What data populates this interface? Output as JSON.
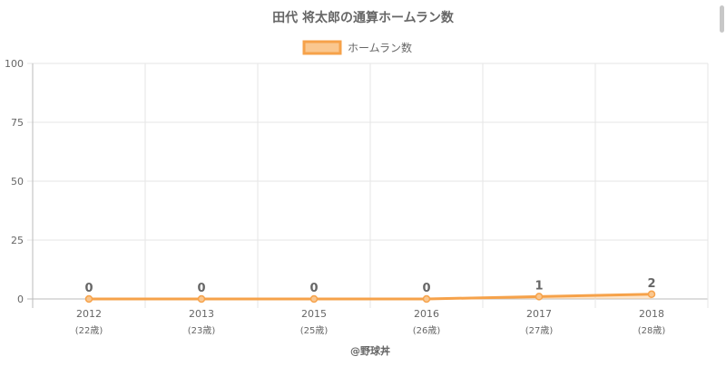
{
  "chart_data": {
    "type": "line",
    "title": "田代 将太郎の通算ホームラン数",
    "legend": {
      "position": "top",
      "label": "ホームラン数"
    },
    "categories": [
      "2012",
      "2013",
      "2015",
      "2016",
      "2017",
      "2018"
    ],
    "age_labels": [
      "(22歳)",
      "(23歳)",
      "(25歳)",
      "(26歳)",
      "(27歳)",
      "(28歳)"
    ],
    "series": [
      {
        "name": "ホームラン数",
        "values": [
          0,
          0,
          0,
          0,
          1,
          2
        ]
      }
    ],
    "ylim": [
      0,
      100
    ],
    "yticks": [
      0,
      25,
      50,
      75,
      100
    ],
    "grid": true,
    "colors": {
      "line": "#f6a24a",
      "fill": "#fac78f",
      "grid": "#e6e6e6",
      "axis": "#bbbbbb",
      "text": "#666666"
    }
  },
  "footer": {
    "credit": "@野球丼"
  }
}
